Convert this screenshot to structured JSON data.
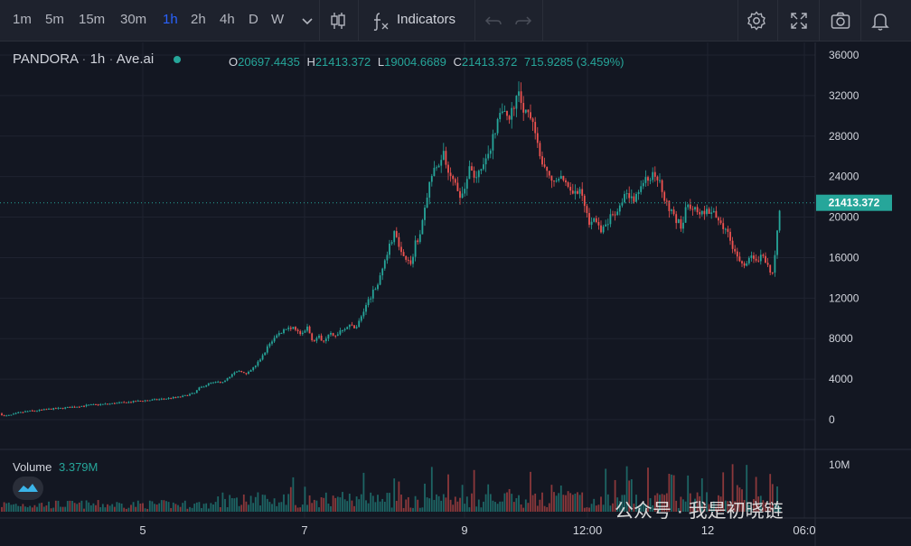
{
  "toolbar": {
    "timeframes": [
      "1m",
      "5m",
      "15m",
      "30m",
      "1h",
      "2h",
      "4h",
      "D",
      "W"
    ],
    "active_timeframe": "1h",
    "indicators_label": "Indicators",
    "icons": [
      "chevron-down-icon",
      "candlestick-icon",
      "function-icon",
      "undo-icon",
      "redo-icon",
      "settings-icon",
      "fullscreen-icon",
      "camera-icon",
      "bell-icon"
    ]
  },
  "legend": {
    "symbol": "PANDORA",
    "interval": "1h",
    "source": "Ave.ai",
    "o_label": "O",
    "o_value": "20697.4435",
    "h_label": "H",
    "h_value": "21413.372",
    "l_label": "L",
    "l_value": "19004.6689",
    "c_label": "C",
    "c_value": "21413.372",
    "change": "715.9285 (3.459%)"
  },
  "volume_legend": {
    "label": "Volume",
    "value": "3.379M"
  },
  "watermark": "公众号 · 我是初晓链",
  "colors": {
    "up": "#26a69a",
    "down": "#ef5350",
    "bg": "#131722",
    "grid": "#1f2330",
    "text": "#d1d4dc",
    "price_tag": "#26a69a"
  },
  "chart_data": {
    "type": "candlestick",
    "y_ticks": [
      "36000",
      "32000",
      "28000",
      "24000",
      "20000",
      "16000",
      "12000",
      "8000",
      "4000",
      "0"
    ],
    "ylim": [
      -800,
      36900
    ],
    "x_ticks": [
      "5",
      "7",
      "9",
      "12:00",
      "12",
      "06:0"
    ],
    "volume_tick": "10M",
    "last_price_label": "21413.372",
    "last_price": 21413.372,
    "price_path": [
      [
        0,
        600
      ],
      [
        5,
        350
      ],
      [
        12,
        450
      ],
      [
        20,
        650
      ],
      [
        30,
        820
      ],
      [
        40,
        880
      ],
      [
        50,
        1000
      ],
      [
        60,
        1080
      ],
      [
        70,
        1150
      ],
      [
        80,
        1250
      ],
      [
        90,
        1350
      ],
      [
        100,
        1450
      ],
      [
        110,
        1500
      ],
      [
        120,
        1550
      ],
      [
        130,
        1650
      ],
      [
        140,
        1700
      ],
      [
        150,
        1800
      ],
      [
        160,
        1900
      ],
      [
        170,
        1950
      ],
      [
        180,
        2050
      ],
      [
        190,
        2150
      ],
      [
        200,
        2250
      ],
      [
        210,
        2500
      ],
      [
        215,
        2600
      ],
      [
        220,
        3100
      ],
      [
        225,
        3300
      ],
      [
        232,
        3600
      ],
      [
        240,
        3700
      ],
      [
        248,
        3800
      ],
      [
        252,
        4200
      ],
      [
        258,
        4500
      ],
      [
        266,
        4900
      ],
      [
        272,
        4400
      ],
      [
        278,
        4900
      ],
      [
        285,
        5600
      ],
      [
        292,
        6500
      ],
      [
        298,
        7500
      ],
      [
        304,
        8100
      ],
      [
        310,
        8600
      ],
      [
        316,
        9000
      ],
      [
        322,
        9100
      ],
      [
        328,
        8800
      ],
      [
        334,
        8300
      ],
      [
        340,
        9100
      ],
      [
        346,
        7800
      ],
      [
        352,
        8200
      ],
      [
        358,
        7800
      ],
      [
        364,
        8600
      ],
      [
        370,
        8100
      ],
      [
        376,
        8800
      ],
      [
        382,
        9100
      ],
      [
        388,
        9300
      ],
      [
        394,
        9100
      ],
      [
        400,
        10200
      ],
      [
        406,
        11500
      ],
      [
        412,
        12500
      ],
      [
        418,
        13600
      ],
      [
        424,
        15000
      ],
      [
        430,
        17000
      ],
      [
        436,
        18300
      ],
      [
        442,
        17000
      ],
      [
        448,
        16000
      ],
      [
        454,
        15300
      ],
      [
        460,
        17500
      ],
      [
        466,
        18500
      ],
      [
        472,
        22000
      ],
      [
        478,
        24000
      ],
      [
        484,
        25000
      ],
      [
        490,
        26600
      ],
      [
        496,
        24800
      ],
      [
        502,
        23500
      ],
      [
        508,
        22000
      ],
      [
        514,
        23000
      ],
      [
        520,
        24800
      ],
      [
        526,
        23500
      ],
      [
        532,
        24500
      ],
      [
        538,
        25500
      ],
      [
        544,
        27500
      ],
      [
        550,
        29000
      ],
      [
        556,
        31000
      ],
      [
        562,
        29800
      ],
      [
        568,
        30500
      ],
      [
        574,
        32000
      ],
      [
        580,
        30700
      ],
      [
        586,
        30000
      ],
      [
        592,
        28300
      ],
      [
        598,
        25500
      ],
      [
        604,
        24200
      ],
      [
        610,
        23900
      ],
      [
        616,
        23500
      ],
      [
        622,
        24000
      ],
      [
        628,
        23200
      ],
      [
        634,
        22000
      ],
      [
        640,
        22800
      ],
      [
        646,
        21200
      ],
      [
        652,
        19500
      ],
      [
        658,
        19800
      ],
      [
        664,
        18500
      ],
      [
        670,
        19000
      ],
      [
        676,
        20300
      ],
      [
        682,
        20600
      ],
      [
        688,
        21800
      ],
      [
        694,
        22400
      ],
      [
        700,
        21800
      ],
      [
        706,
        22500
      ],
      [
        712,
        23300
      ],
      [
        718,
        23800
      ],
      [
        724,
        24500
      ],
      [
        730,
        23300
      ],
      [
        736,
        21800
      ],
      [
        742,
        20600
      ],
      [
        748,
        19800
      ],
      [
        754,
        19100
      ],
      [
        760,
        21000
      ],
      [
        766,
        20500
      ],
      [
        772,
        20800
      ],
      [
        778,
        20300
      ],
      [
        784,
        20500
      ],
      [
        790,
        20200
      ],
      [
        796,
        19600
      ],
      [
        802,
        19000
      ],
      [
        808,
        17600
      ],
      [
        814,
        16200
      ],
      [
        820,
        15300
      ],
      [
        826,
        15500
      ],
      [
        832,
        16000
      ],
      [
        838,
        15800
      ],
      [
        844,
        16400
      ],
      [
        850,
        15000
      ],
      [
        856,
        14300
      ],
      [
        860,
        19000
      ],
      [
        864,
        21413
      ]
    ]
  }
}
